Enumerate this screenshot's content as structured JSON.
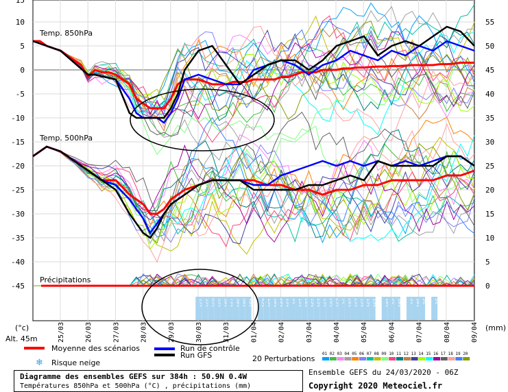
{
  "chart_data": {
    "type": "line",
    "left_axis": {
      "ticks": [
        10,
        5,
        0,
        -5,
        -10,
        -15,
        -20,
        -25,
        -30,
        -35,
        -40,
        -45,
        15
      ]
    },
    "right_axis": {
      "ticks": [
        55,
        50,
        45,
        40,
        35,
        30,
        25,
        20,
        15,
        10,
        5,
        0
      ]
    },
    "left_unit": "(°c)",
    "right_unit": "(mm)",
    "altitude": "Alt. 45m",
    "dates": [
      "25/03",
      "26/03",
      "27/03",
      "28/03",
      "29/03",
      "30/03",
      "31/03",
      "01/04",
      "02/04",
      "03/04",
      "04/04",
      "05/04",
      "06/04",
      "07/04",
      "08/04",
      "09/04"
    ],
    "panels": {
      "t850": "Temp. 850hPa",
      "t500": "Temp. 500hPa",
      "precip": "Précipitations"
    },
    "t850_series": [
      {
        "name": "Moyenne des scénarios",
        "color": "#ff0000",
        "x": [
          0,
          1,
          2,
          3,
          4,
          5,
          6,
          7,
          8,
          9,
          10,
          11,
          12,
          13,
          14,
          15,
          16,
          17,
          18,
          19,
          20,
          21,
          22,
          23,
          24,
          25,
          26,
          27,
          28,
          29,
          30,
          31,
          32,
          33,
          34,
          35,
          36,
          37,
          38,
          39,
          40,
          41,
          42,
          43,
          44,
          45,
          46,
          47,
          48,
          49,
          50,
          51,
          52,
          53,
          54,
          55,
          56,
          57,
          58,
          59,
          60,
          61,
          62,
          63,
          64
        ],
        "y": [
          6,
          6,
          5,
          4.5,
          4,
          3,
          2,
          1,
          -1.5,
          0,
          -0.5,
          -0.5,
          -1,
          -2,
          -3,
          -6,
          -7,
          -8,
          -8,
          -8,
          -6,
          -3,
          -2,
          -2,
          -2,
          -2.5,
          -3,
          -3,
          -3,
          -2.5,
          -2.5,
          -2.5,
          -2,
          -2,
          -2,
          -2,
          -1.5,
          -1.5,
          -1,
          -0.5,
          -0.5,
          -0.5,
          0,
          0,
          0,
          0.3,
          0.3,
          0.5,
          0.5,
          0.6,
          0.7,
          0.7,
          0.8,
          0.8,
          0.9,
          1,
          1,
          1,
          1,
          1.2,
          1.2,
          1.3,
          1.5,
          1.5,
          1.5
        ]
      },
      {
        "name": "Run de contrôle",
        "color": "#0000ff",
        "x": [
          0,
          4,
          8,
          9,
          12,
          14,
          15,
          16,
          17,
          18,
          19,
          20,
          21,
          22,
          24,
          26,
          28,
          30,
          31,
          32,
          34,
          36,
          38,
          40,
          42,
          44,
          46,
          48,
          50,
          52,
          54,
          56,
          58,
          60,
          62,
          64
        ],
        "y": [
          6,
          4,
          -1,
          -1,
          -2,
          -6,
          -9,
          -10,
          -10,
          -10,
          -11,
          -9,
          -6,
          -2,
          -1,
          -2,
          -3,
          -3,
          -2,
          0,
          1,
          2,
          1,
          -1,
          1,
          2,
          4,
          3,
          2,
          4,
          3,
          5,
          4,
          6,
          5,
          4
        ]
      },
      {
        "name": "Run GFS",
        "color": "#000000",
        "x": [
          0,
          4,
          8,
          9,
          12,
          14,
          15,
          16,
          17,
          18,
          19,
          20,
          21,
          22,
          24,
          26,
          28,
          30,
          32,
          34,
          36,
          38,
          40,
          42,
          44,
          46,
          48,
          50,
          52,
          54,
          56,
          58,
          60,
          62,
          64
        ],
        "y": [
          6,
          4,
          -1,
          -1,
          -2,
          -9,
          -10,
          -10,
          -10,
          -10,
          -10,
          -8,
          -5,
          0,
          4,
          5,
          1,
          -3,
          -1,
          1,
          2,
          2,
          0,
          2,
          5,
          6,
          7,
          3,
          5,
          6,
          5,
          7,
          9,
          8,
          5
        ]
      }
    ],
    "t500_series": [
      {
        "name": "Moyenne des scénarios",
        "color": "#ff0000",
        "x": [
          0,
          2,
          4,
          6,
          8,
          10,
          12,
          14,
          16,
          17,
          18,
          19,
          20,
          22,
          24,
          26,
          28,
          30,
          32,
          34,
          36,
          38,
          40,
          42,
          44,
          46,
          48,
          50,
          52,
          54,
          56,
          58,
          60,
          62,
          64
        ],
        "y": [
          -18,
          -16,
          -17,
          -19,
          -21,
          -23,
          -23,
          -26,
          -28,
          -30,
          -30,
          -29,
          -27,
          -25,
          -24,
          -23,
          -23,
          -23,
          -23,
          -24,
          -24,
          -25,
          -25,
          -26,
          -25,
          -25,
          -24,
          -24,
          -23,
          -23,
          -23,
          -23,
          -22,
          -22,
          -21
        ]
      },
      {
        "name": "Run de contrôle",
        "color": "#0000ff",
        "x": [
          0,
          2,
          4,
          6,
          8,
          10,
          12,
          14,
          16,
          17,
          18,
          19,
          20,
          22,
          24,
          26,
          28,
          30,
          32,
          34,
          36,
          38,
          40,
          42,
          44,
          46,
          48,
          50,
          52,
          54,
          56,
          58,
          60,
          62,
          64
        ],
        "y": [
          -18,
          -16,
          -17,
          -19,
          -21,
          -23,
          -24,
          -27,
          -31,
          -34,
          -32,
          -30,
          -28,
          -26,
          -24,
          -23,
          -23,
          -23,
          -24,
          -24,
          -22,
          -21,
          -20,
          -19,
          -20,
          -19,
          -20,
          -19,
          -20,
          -19,
          -20,
          -19,
          -18,
          -18,
          -20
        ]
      },
      {
        "name": "Run GFS",
        "color": "#000000",
        "x": [
          0,
          2,
          4,
          6,
          8,
          10,
          12,
          14,
          16,
          17,
          18,
          19,
          20,
          22,
          24,
          26,
          28,
          30,
          32,
          34,
          36,
          38,
          40,
          42,
          44,
          46,
          48,
          50,
          52,
          54,
          56,
          58,
          60,
          62,
          64
        ],
        "y": [
          -18,
          -16,
          -17,
          -19,
          -21,
          -23,
          -25,
          -30,
          -34,
          -35,
          -33,
          -30,
          -28,
          -26,
          -24,
          -23,
          -23,
          -23,
          -25,
          -25,
          -25,
          -25,
          -24,
          -24,
          -23,
          -22,
          -23,
          -19,
          -20,
          -20,
          -20,
          -20,
          -18,
          -18,
          -20
        ]
      }
    ],
    "snow_risk": {
      "dates_index": [
        5,
        6,
        7,
        8,
        9,
        10,
        11,
        12,
        13,
        15,
        16,
        17,
        18,
        19,
        20,
        21,
        22,
        23,
        24,
        25,
        26,
        27,
        28,
        29,
        30,
        31,
        32,
        33,
        35,
        36,
        37,
        39,
        40,
        41,
        43
      ],
      "labels": [
        "15%",
        "35%",
        "65%",
        "35%",
        "30%",
        "75%",
        "30%",
        "30%",
        "40%",
        "45%",
        "15%",
        "10%",
        "20%",
        "15%",
        "5%",
        "15%",
        "20%",
        "15%",
        "25%",
        "15%",
        "20%",
        "25%",
        "5%",
        "20%",
        "25%",
        "15%",
        "15%",
        "15%",
        "10%",
        "5%",
        "10%",
        "5%",
        "10%",
        "5%",
        "5%"
      ]
    },
    "legend": {
      "mean": "Moyenne des scénarios",
      "control": "Run de contrôle",
      "gfs": "Run GFS",
      "snow": "Risque neige",
      "perturb": "20 Perturbations",
      "perturb_ids": [
        "01",
        "02",
        "03",
        "04",
        "05",
        "06",
        "07",
        "08",
        "09",
        "10",
        "11",
        "12",
        "13",
        "14",
        "15",
        "16",
        "17",
        "18",
        "19",
        "20"
      ],
      "perturb_colors": [
        "#00a0ff",
        "#40c040",
        "#ff80ff",
        "#a0a0a0",
        "#ff8000",
        "#8080ff",
        "#00c0a0",
        "#c0c000",
        "#80ff80",
        "#ff4080",
        "#008080",
        "#c08040",
        "#4040a0",
        "#a0ff00",
        "#00ffff",
        "#a000a0",
        "#606060",
        "#ffa0a0",
        "#4080ff",
        "#80a000"
      ]
    }
  },
  "footer": {
    "title": "Diagramme des ensembles GEFS sur 384h : 50.9N 0.4W",
    "subtitle": "Températures 850hPa et 500hPa (°C) , précipitations (mm)",
    "run_date": "Ensemble GEFS du 24/03/2020 - 06Z",
    "copyright": "Copyright 2020 Meteociel.fr"
  },
  "colors": {
    "mean": "#ff0000",
    "control": "#0000ff",
    "gfs": "#000000",
    "snow_box": "#a8d4f0"
  }
}
